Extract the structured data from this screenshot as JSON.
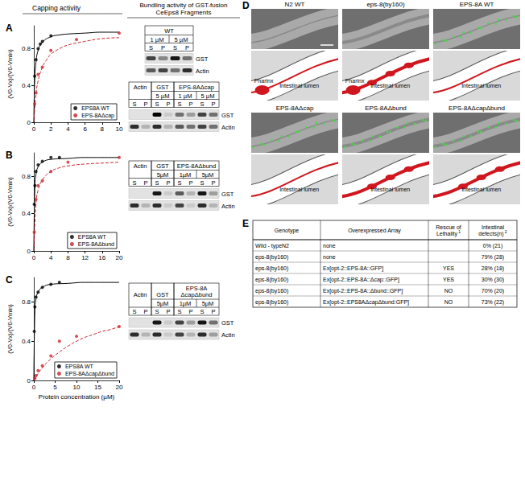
{
  "capping": {
    "title": "Capping activity"
  },
  "chart_data": [
    {
      "type": "scatter",
      "title": "A",
      "ylabel": "(V0-Vx)/(V0-Vmin)",
      "xlim": [
        0,
        10
      ],
      "xticks": [
        0,
        2,
        4,
        6,
        8,
        10
      ],
      "ylim": [
        0,
        1.05
      ],
      "yticks": [
        0,
        0.4,
        0.8
      ],
      "grid": false,
      "legend": "lower right",
      "series": [
        {
          "name": "EPS8A WT",
          "color": "#000000",
          "marker": "circle",
          "x": [
            0.1,
            0.25,
            0.5,
            0.75,
            1,
            2
          ],
          "values": [
            0.5,
            0.68,
            0.8,
            0.85,
            0.88,
            0.94
          ],
          "fit": {
            "line_style": "solid",
            "x": [
              0,
              0.1,
              0.25,
              0.5,
              1,
              2,
              3,
              4,
              6,
              8,
              10
            ],
            "values": [
              0,
              0.45,
              0.65,
              0.78,
              0.87,
              0.93,
              0.95,
              0.96,
              0.97,
              0.98,
              0.98
            ]
          }
        },
        {
          "name": "EPS-8AΔcap",
          "color": "#c8232c",
          "marker": "circle",
          "x": [
            0.1,
            0.25,
            0.5,
            1,
            2,
            5,
            10
          ],
          "values": [
            0.2,
            0.32,
            0.52,
            0.6,
            0.78,
            0.9,
            0.97
          ],
          "fit": {
            "line_style": "dashed",
            "x": [
              0,
              0.25,
              0.5,
              1,
              1.5,
              2,
              3,
              4,
              6,
              8,
              10
            ],
            "values": [
              0,
              0.3,
              0.45,
              0.6,
              0.68,
              0.74,
              0.8,
              0.84,
              0.88,
              0.91,
              0.92
            ]
          }
        }
      ]
    },
    {
      "type": "scatter",
      "title": "B",
      "ylabel": "(V0-Vx)/(V0-Vmin)",
      "xlim": [
        0,
        20
      ],
      "xticks": [
        0,
        4,
        8,
        12,
        16,
        20
      ],
      "ylim": [
        0,
        1.05
      ],
      "yticks": [
        0,
        0.4,
        0.8
      ],
      "grid": false,
      "legend": "lower right",
      "series": [
        {
          "name": "EPS8A WT",
          "color": "#000000",
          "marker": "circle",
          "x": [
            0.1,
            0.25,
            0.5,
            1,
            2,
            4,
            6
          ],
          "values": [
            0.5,
            0.7,
            0.85,
            0.92,
            0.96,
            1.0,
            1.0
          ],
          "fit": {
            "line_style": "solid",
            "x": [
              0,
              0.25,
              0.5,
              1,
              2,
              4,
              8,
              12,
              16,
              20
            ],
            "values": [
              0,
              0.7,
              0.82,
              0.9,
              0.95,
              0.98,
              0.99,
              1,
              1,
              1
            ]
          }
        },
        {
          "name": "EPS-8AΔbund",
          "color": "#c8232c",
          "marker": "circle",
          "x": [
            0.1,
            0.5,
            1,
            2,
            4,
            8,
            20
          ],
          "values": [
            0.2,
            0.55,
            0.7,
            0.75,
            0.85,
            0.95,
            1.0
          ],
          "fit": {
            "line_style": "dashed",
            "x": [
              0,
              0.5,
              1,
              2,
              4,
              6,
              8,
              12,
              16,
              20
            ],
            "values": [
              0,
              0.5,
              0.65,
              0.76,
              0.85,
              0.89,
              0.91,
              0.93,
              0.94,
              0.95
            ]
          }
        }
      ]
    },
    {
      "type": "scatter",
      "title": "C",
      "ylabel": "(V0-Vx)/(V0-Vmin)",
      "xlabel": "Protein concentration (µM)",
      "xlim": [
        0,
        20
      ],
      "xticks": [
        0,
        5,
        10,
        15,
        20
      ],
      "ylim": [
        0,
        1.05
      ],
      "yticks": [
        0,
        0.4,
        0.8
      ],
      "grid": false,
      "legend": "lower right",
      "series": [
        {
          "name": "EPS8A WT",
          "color": "#000000",
          "marker": "circle",
          "x": [
            0.1,
            0.25,
            0.5,
            1,
            2,
            4,
            6
          ],
          "values": [
            0.5,
            0.75,
            0.85,
            0.9,
            0.95,
            0.98,
            1.0
          ],
          "fit": {
            "line_style": "solid",
            "x": [
              0,
              0.25,
              0.5,
              1,
              2,
              4,
              8,
              12,
              16,
              20
            ],
            "values": [
              0,
              0.72,
              0.83,
              0.9,
              0.95,
              0.98,
              0.99,
              1,
              1,
              1
            ]
          }
        },
        {
          "name": "EPS-8AΔcapΔbund",
          "color": "#c8232c",
          "marker": "circle",
          "x": [
            0.25,
            0.5,
            1,
            2,
            4,
            6,
            10,
            20
          ],
          "values": [
            0.02,
            0.05,
            0.1,
            0.15,
            0.25,
            0.4,
            0.45,
            0.55
          ],
          "fit": {
            "line_style": "dashed",
            "x": [
              0,
              1,
              2,
              4,
              6,
              8,
              10,
              12,
              14,
              16,
              18,
              20
            ],
            "values": [
              0,
              0.07,
              0.13,
              0.22,
              0.29,
              0.35,
              0.4,
              0.44,
              0.47,
              0.5,
              0.52,
              0.55
            ]
          }
        }
      ]
    }
  ],
  "bundling": {
    "title": "Bundling activity of GST-fusion CeEps8 Fragments",
    "blots": [
      {
        "groups": [
          {
            "name": "WT",
            "sub": [
              "1 µM",
              "5 µM"
            ]
          }
        ],
        "lanes": [
          "S",
          "P",
          "S",
          "P"
        ],
        "rows": [
          {
            "name": "GST",
            "bands": [
              0.7,
              0.4,
              0.9,
              0.5
            ]
          },
          {
            "name": "Actin",
            "bands": [
              0.6,
              0.7,
              0.5,
              0.8
            ]
          }
        ]
      },
      {
        "groups": [
          {
            "name": "Actin"
          },
          {
            "name": "GST",
            "sub": [
              "5 µM"
            ]
          },
          {
            "name": "EPS-8AΔcap",
            "sub": [
              "1 µM",
              "5 µM"
            ]
          }
        ],
        "lanes": [
          "S",
          "P",
          "S",
          "P",
          "S",
          "P",
          "S",
          "P"
        ],
        "rows": [
          {
            "name": "GST",
            "bands": [
              0,
              0,
              1,
              0.1,
              0.5,
              0.3,
              0.7,
              0.5
            ]
          },
          {
            "name": "Actin",
            "bands": [
              0.8,
              0.2,
              0.8,
              0.2,
              0.6,
              0.5,
              0.7,
              0.5
            ]
          }
        ]
      },
      {
        "groups": [
          {
            "name": "Actin"
          },
          {
            "name": "GST",
            "sub": [
              "5µM"
            ]
          },
          {
            "name": "EPS-8AΔbund",
            "sub": [
              "1µM",
              "5µM"
            ]
          }
        ],
        "lanes": [
          "S",
          "P",
          "S",
          "P",
          "S",
          "P",
          "S",
          "P"
        ],
        "rows": [
          {
            "name": "GST",
            "bands": [
              0,
              0,
              0.9,
              0.1,
              0.6,
              0.2,
              0.9,
              0.3
            ]
          },
          {
            "name": "Actin",
            "bands": [
              0.8,
              0.2,
              0.8,
              0.1,
              0.7,
              0.1,
              0.8,
              0.2
            ]
          }
        ]
      },
      {
        "groups": [
          {
            "name": "Actin"
          },
          {
            "name": "GST",
            "sub": [
              "5µM"
            ]
          },
          {
            "name": "EPS-8A ΔcapΔbund",
            "sub": [
              "1µM",
              "5µM"
            ]
          }
        ],
        "lanes": [
          "S",
          "P",
          "S",
          "P",
          "S",
          "P",
          "S",
          "P"
        ],
        "rows": [
          {
            "name": "GST",
            "bands": [
              0,
              0,
              0.9,
              0.1,
              0.7,
              0.3,
              0.9,
              0.5
            ]
          },
          {
            "name": "Actin",
            "bands": [
              0.8,
              0.2,
              0.8,
              0.1,
              0.7,
              0.2,
              0.8,
              0.3
            ]
          }
        ]
      }
    ]
  },
  "microscopy": {
    "label": "D",
    "panels": [
      {
        "title": "N2 WT",
        "annotations": [
          "Pharinx",
          "Intestinal lumen"
        ]
      },
      {
        "title": "eps-8(by160)",
        "annotations": [
          "Pharinx",
          "Intestinal lumen"
        ]
      },
      {
        "title": "EPS-8A WT",
        "annotations": [
          "Intestinal lumen"
        ]
      },
      {
        "title": "EPS-8AΔcap",
        "annotations": [
          "Intestinal lumen"
        ]
      },
      {
        "title": "EPS-8AΔbund",
        "annotations": [
          "Intestinal lumen"
        ]
      },
      {
        "title": "EPS-8AΔcapΔbund",
        "annotations": [
          "Intestinal lumen"
        ]
      }
    ]
  },
  "table": {
    "label": "E",
    "header": [
      {
        "text": "Genotype"
      },
      {
        "text": "Overexpressed Array"
      },
      {
        "text": "Rescue of Lethality",
        "note": "1"
      },
      {
        "text": "Intestinal defects(n)",
        "note": "2"
      }
    ],
    "rows": [
      [
        "Wild - typeN2",
        "none",
        null,
        "0% (21)"
      ],
      [
        "eps-8(by160)",
        "none",
        null,
        "79% (28)"
      ],
      [
        "eps-8(by160)",
        "Ex[opt-2::EPS-8A::GFP]",
        "YES",
        "28% (18)"
      ],
      [
        "eps-8(by160)",
        "Ex[opt-2::EPS-8A::Δcap::GFP]",
        "YES",
        "30% (30)"
      ],
      [
        "eps-8(by160)",
        "Ex[opt-2::EPS-8A::Δbund::GFP]",
        "NO",
        "70% (20)"
      ],
      [
        "eps-8(by160)",
        "Ex[opt-2::EPS8AΔcapΔbund:GFP]",
        "NO",
        "73% (22)"
      ]
    ]
  }
}
